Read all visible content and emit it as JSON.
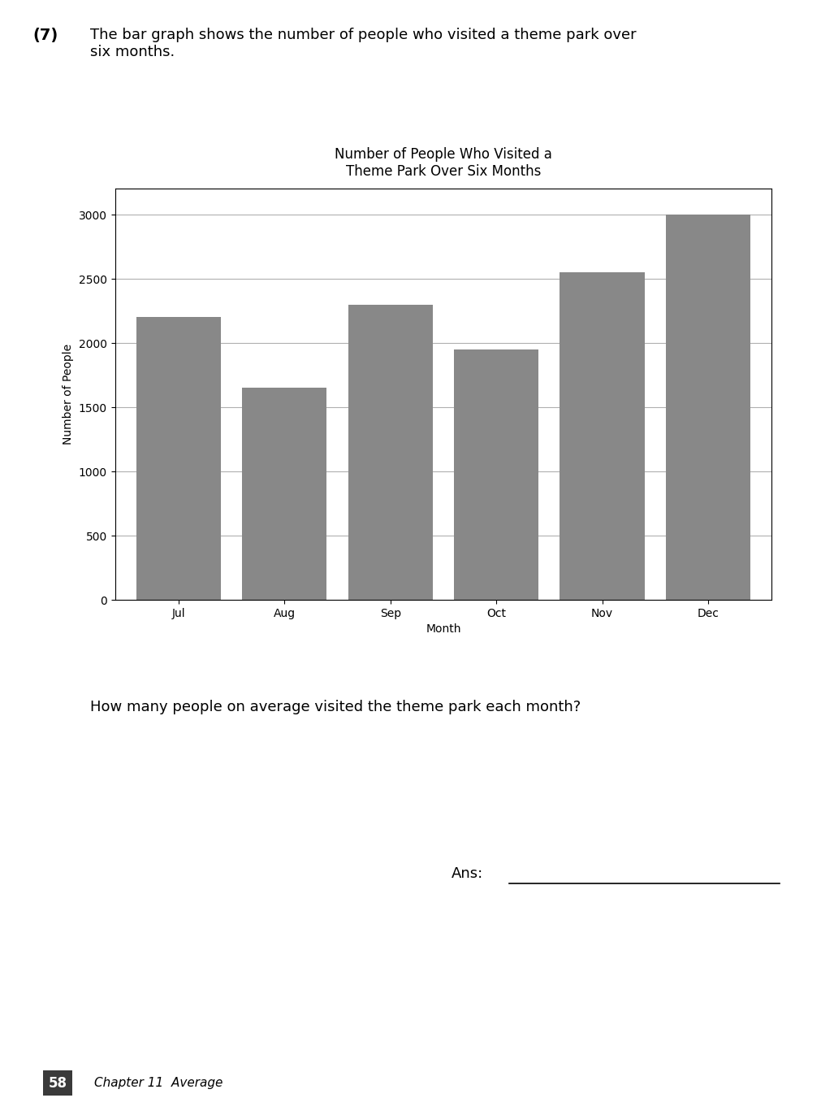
{
  "chart_data": {
    "type": "bar",
    "title": "Number of People Who Visited a\nTheme Park Over Six Months",
    "x_label": "Month",
    "y_label": "Number of People",
    "categories": [
      "Jul",
      "Aug",
      "Sep",
      "Oct",
      "Nov",
      "Dec"
    ],
    "values": [
      2200,
      1650,
      2300,
      1950,
      2550,
      3000
    ],
    "color": "#888888",
    "ylim": [
      0,
      3200
    ],
    "yticks": [
      0,
      500,
      1000,
      1500,
      2000,
      2500,
      3000
    ],
    "grid": true,
    "annotations": [
      "(7)",
      "The bar graph shows the number of people who visited a theme park over\nsix months.",
      "How many people on average visited the theme park each month?",
      "Ans:",
      "58",
      "Chapter 11  Average"
    ]
  }
}
